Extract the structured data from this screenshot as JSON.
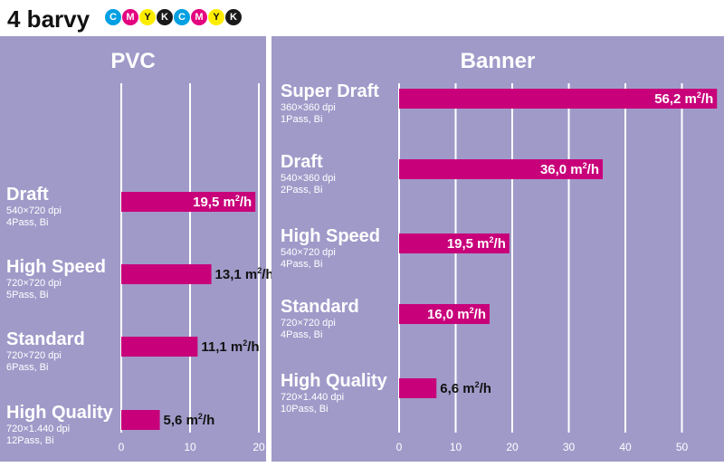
{
  "header": {
    "title": "4 barvy",
    "inks": [
      {
        "letter": "C",
        "color": "#00a0e3",
        "text_color": "#ffffff"
      },
      {
        "letter": "M",
        "color": "#e4007f",
        "text_color": "#ffffff"
      },
      {
        "letter": "Y",
        "color": "#ffed00",
        "text_color": "#111111"
      },
      {
        "letter": "K",
        "color": "#1a1a1a",
        "text_color": "#ffffff"
      },
      {
        "letter": "C",
        "color": "#00a0e3",
        "text_color": "#ffffff"
      },
      {
        "letter": "M",
        "color": "#e4007f",
        "text_color": "#ffffff"
      },
      {
        "letter": "Y",
        "color": "#ffed00",
        "text_color": "#111111"
      },
      {
        "letter": "K",
        "color": "#1a1a1a",
        "text_color": "#ffffff"
      }
    ]
  },
  "colors": {
    "bar": "#c8007a",
    "panel": "#a09ac9",
    "grid": "#ffffff"
  },
  "chart_data": [
    {
      "type": "bar",
      "orientation": "horizontal",
      "title": "PVC",
      "unit_text": "m",
      "unit_sup": "2",
      "unit_tail": "/h",
      "xlim": [
        0,
        20
      ],
      "ticks": [
        0,
        10,
        20
      ],
      "categories": [
        "Draft",
        "High Speed",
        "Standard",
        "High Quality"
      ],
      "subtitles": [
        [
          "540×720 dpi",
          "4Pass, Bi"
        ],
        [
          "720×720 dpi",
          "5Pass, Bi"
        ],
        [
          "720×720 dpi",
          "6Pass, Bi"
        ],
        [
          "720×1.440 dpi",
          "12Pass, Bi"
        ]
      ],
      "values": [
        19.5,
        13.1,
        11.1,
        5.6
      ],
      "value_labels": [
        "19,5",
        "13,1",
        "11,1",
        "5,6"
      ]
    },
    {
      "type": "bar",
      "orientation": "horizontal",
      "title": "Banner",
      "unit_text": "m",
      "unit_sup": "2",
      "unit_tail": "/h",
      "xlim": [
        0,
        56
      ],
      "ticks": [
        0,
        10,
        20,
        30,
        40,
        50
      ],
      "categories": [
        "Super Draft",
        "Draft",
        "High Speed",
        "Standard",
        "High Quality"
      ],
      "subtitles": [
        [
          "360×360 dpi",
          "1Pass, Bi"
        ],
        [
          "540×360 dpi",
          "2Pass, Bi"
        ],
        [
          "540×720 dpi",
          "4Pass, Bi"
        ],
        [
          "720×720 dpi",
          "4Pass, Bi"
        ],
        [
          "720×1.440 dpi",
          "10Pass, Bi"
        ]
      ],
      "values": [
        56.2,
        36.0,
        19.5,
        16.0,
        6.6
      ],
      "value_labels": [
        "56,2",
        "36,0",
        "19,5",
        "16,0",
        "6,6"
      ]
    }
  ]
}
